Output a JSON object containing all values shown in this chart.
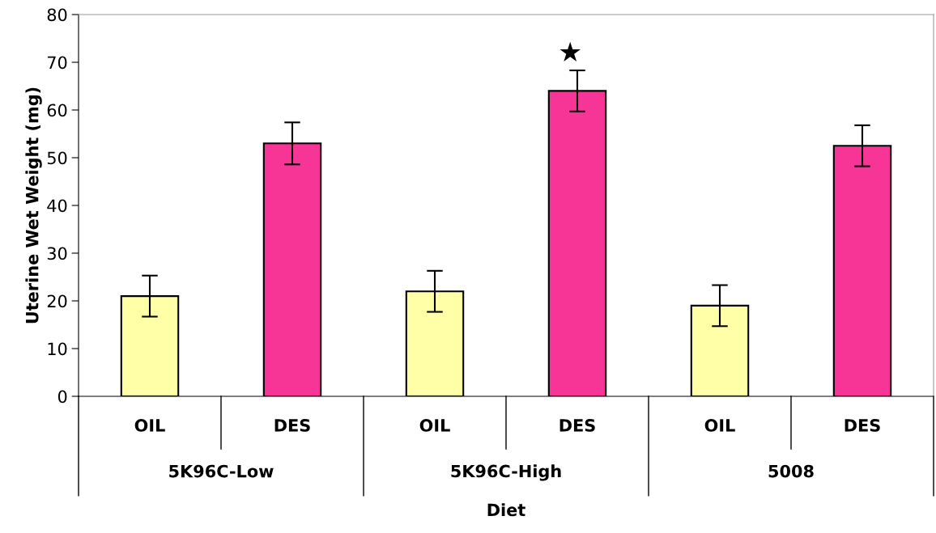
{
  "chart_data": {
    "type": "bar",
    "xlabel": "Diet",
    "ylabel": "Uterine Wet Weight (mg)",
    "categories": [
      "5K96C-Low",
      "5K96C-High",
      "5008"
    ],
    "series": [
      {
        "name": "OIL",
        "color": "#ffffa8",
        "values": [
          21,
          22,
          19
        ],
        "errors": [
          4.3,
          4.3,
          4.3
        ]
      },
      {
        "name": "DES",
        "color": "#f73596",
        "values": [
          53,
          64,
          52.5
        ],
        "errors": [
          4.4,
          4.3,
          4.3
        ]
      }
    ],
    "ylim": [
      0,
      80
    ],
    "yticks": [
      0,
      10,
      20,
      30,
      40,
      50,
      60,
      70,
      80
    ],
    "grid": false,
    "legend": false,
    "annotations": [
      "★"
    ]
  }
}
